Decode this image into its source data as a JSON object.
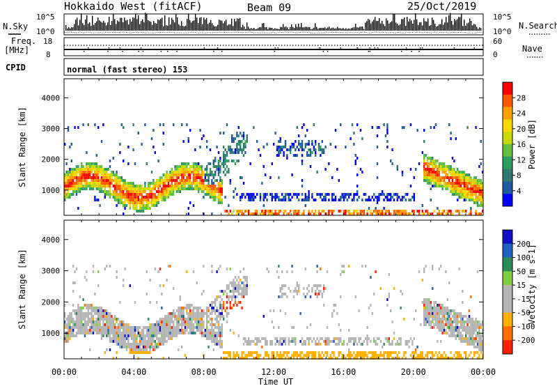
{
  "header": {
    "title": "Hokkaido West (fitACF)",
    "beam": "Beam 09",
    "date": "25/Oct/2019",
    "mode": "normal (fast stereo) 153"
  },
  "side_labels": {
    "nsky": "N.Sky",
    "freq": "Freq.",
    "freq_unit": "[MHz]",
    "cpid": "CPID",
    "nsearch": "N.Search",
    "nave": "Nave"
  },
  "strip_ticks": {
    "noise_left": [
      "10^5",
      "10^0"
    ],
    "noise_right": [
      "10^5",
      "10^0"
    ],
    "freq_left": [
      "18",
      "8"
    ],
    "freq_right": [
      "60",
      "0"
    ]
  },
  "chart_data": [
    {
      "type": "heatmap",
      "name": "power",
      "ylabel": "Slant Range [km]",
      "xlabel": "",
      "yticks": [
        "1000",
        "2000",
        "3000",
        "4000"
      ],
      "ylim": [
        180,
        4620
      ],
      "colorbar": {
        "label": "Power [dB]",
        "ticks": [
          "28",
          "24",
          "20",
          "16",
          "12",
          "8",
          "4"
        ],
        "colors": [
          "#ff0000",
          "#ff5a00",
          "#ffa000",
          "#ffd800",
          "#c8d800",
          "#60c040",
          "#2f9d5f",
          "#2f7a6f",
          "#1e5aa0",
          "#0000ff"
        ]
      }
    },
    {
      "type": "heatmap",
      "name": "velocity",
      "ylabel": "Slant Range [km]",
      "xlabel": "Time UT",
      "yticks": [
        "1000",
        "2000",
        "3000",
        "4000"
      ],
      "ylim": [
        180,
        4620
      ],
      "xticks": [
        "00:00",
        "04:00",
        "08:00",
        "12:00",
        "16:00",
        "20:00",
        "00:00"
      ],
      "colorbar": {
        "label": "Velocity [m s-1]",
        "ticks": [
          "200",
          "100",
          "50",
          "15",
          "-15",
          "-50",
          "-100",
          "-200"
        ],
        "colors": [
          "#1010c8",
          "#2060c0",
          "#2d8a5a",
          "#7fd040",
          "#b4b4b4",
          "#b4b4b4",
          "#ffb000",
          "#ff7000",
          "#ff2000"
        ]
      }
    }
  ]
}
